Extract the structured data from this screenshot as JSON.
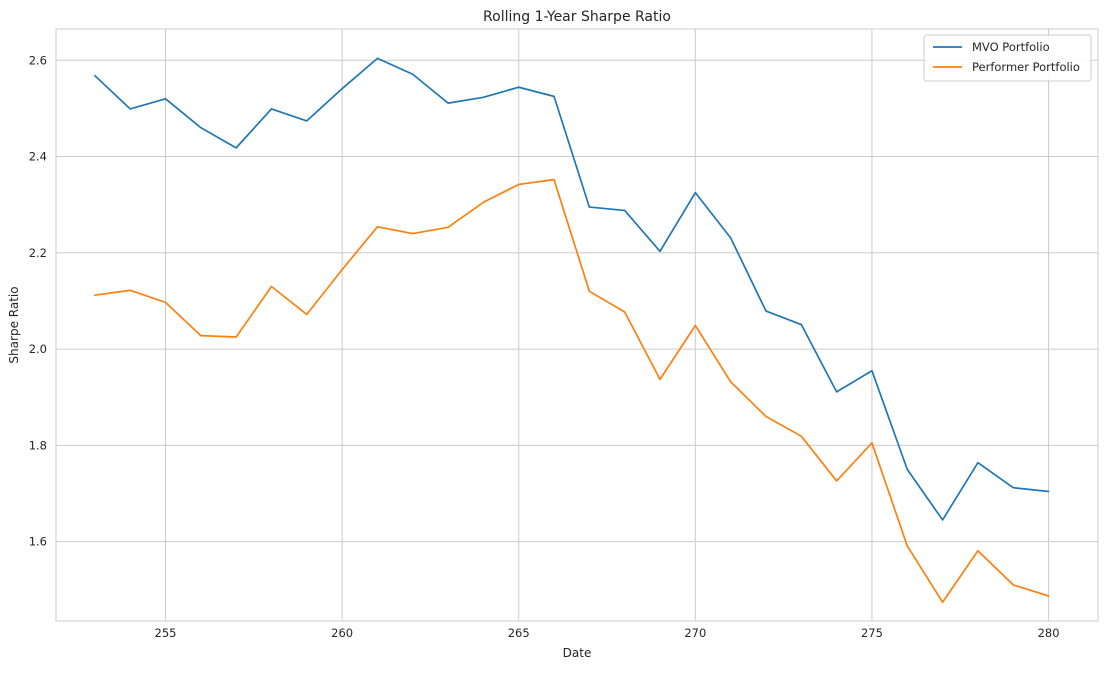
{
  "chart_data": {
    "type": "line",
    "title": "Rolling 1-Year Sharpe Ratio",
    "xlabel": "Date",
    "ylabel": "Sharpe Ratio",
    "xlim": [
      251.9,
      281.4
    ],
    "ylim": [
      1.435,
      2.665
    ],
    "xticks": [
      255,
      260,
      265,
      270,
      275,
      280
    ],
    "yticks": [
      1.6,
      1.8,
      2.0,
      2.2,
      2.4,
      2.6
    ],
    "grid": true,
    "legend_position": "top-right",
    "x": [
      253,
      254,
      255,
      256,
      257,
      258,
      259,
      260,
      261,
      262,
      263,
      264,
      265,
      266,
      267,
      268,
      269,
      270,
      271,
      272,
      273,
      274,
      275,
      276,
      277,
      278,
      279,
      280
    ],
    "series": [
      {
        "name": "MVO Portfolio",
        "color": "#1f77b4",
        "values": [
          2.568,
          2.499,
          2.52,
          2.46,
          2.418,
          2.499,
          2.474,
          2.541,
          2.604,
          2.571,
          2.511,
          2.523,
          2.544,
          2.525,
          2.295,
          2.288,
          2.203,
          2.325,
          2.231,
          2.079,
          2.051,
          1.911,
          1.955,
          1.75,
          1.645,
          1.764,
          1.712,
          1.704
        ]
      },
      {
        "name": "Performer Portfolio",
        "color": "#ff7f0e",
        "values": [
          2.112,
          2.122,
          2.097,
          2.028,
          2.025,
          2.13,
          2.072,
          2.165,
          2.254,
          2.24,
          2.253,
          2.305,
          2.342,
          2.352,
          2.12,
          2.077,
          1.937,
          2.049,
          1.932,
          1.86,
          1.819,
          1.726,
          1.805,
          1.591,
          1.474,
          1.581,
          1.51,
          1.487
        ]
      }
    ]
  }
}
